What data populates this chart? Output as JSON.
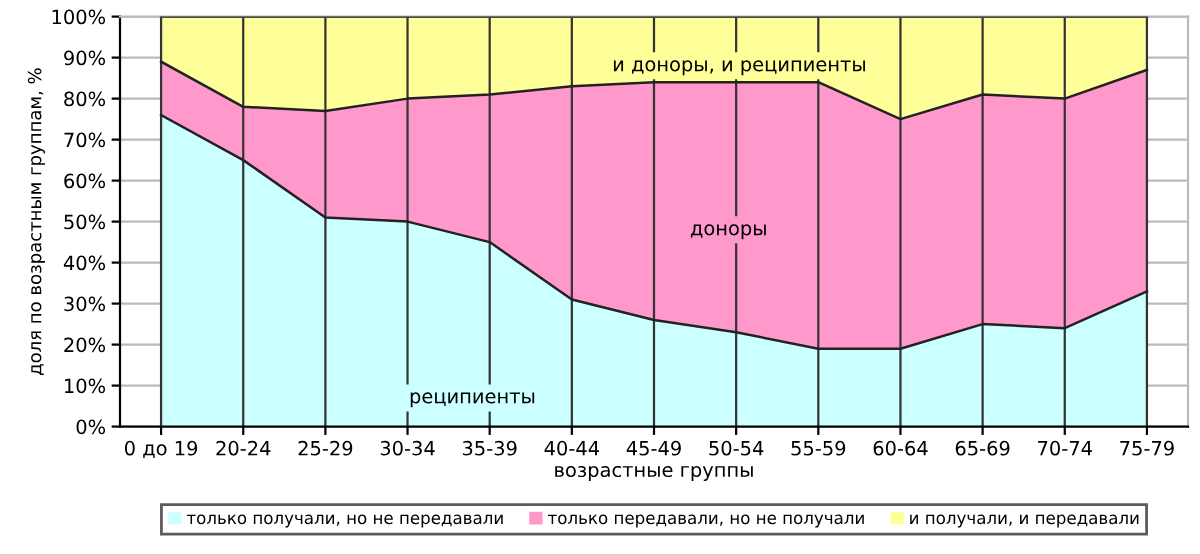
{
  "chart_data": {
    "type": "area",
    "stacked": true,
    "xlabel": "возрастные группы",
    "ylabel": "доля по возрастным группам, %",
    "categories": [
      "0 до 19",
      "20-24",
      "25-29",
      "30-34",
      "35-39",
      "40-44",
      "45-49",
      "50-54",
      "55-59",
      "60-64",
      "65-69",
      "70-74",
      "75-79"
    ],
    "series": [
      {
        "name": "только получали, но не передавали",
        "color": "#ccffff",
        "values": [
          76,
          65,
          51,
          50,
          45,
          31,
          26,
          23,
          19,
          19,
          25,
          24,
          33
        ]
      },
      {
        "name": "только передавали, но не получали",
        "color": "#ff99cc",
        "values": [
          13,
          13,
          26,
          30,
          36,
          52,
          58,
          61,
          65,
          56,
          56,
          56,
          54
        ]
      },
      {
        "name": "и получали, и передавали",
        "color": "#ffff99",
        "values": [
          11,
          22,
          23,
          20,
          19,
          17,
          16,
          16,
          16,
          25,
          19,
          20,
          13
        ]
      }
    ],
    "ylim": [
      0,
      100
    ],
    "yticks": [
      {
        "value": 0,
        "label": "0%"
      },
      {
        "value": 10,
        "label": "10%"
      },
      {
        "value": 20,
        "label": "20%"
      },
      {
        "value": 30,
        "label": "30%"
      },
      {
        "value": 40,
        "label": "40%"
      },
      {
        "value": 50,
        "label": "50%"
      },
      {
        "value": 60,
        "label": "60%"
      },
      {
        "value": 70,
        "label": "70%"
      },
      {
        "value": 80,
        "label": "80%"
      },
      {
        "value": 90,
        "label": "90%"
      },
      {
        "value": 100,
        "label": "100%"
      }
    ],
    "grid": true,
    "legend": "bottom",
    "annotations": [
      "реципиенты",
      "доноры",
      "и доноры, и реципиенты"
    ]
  }
}
